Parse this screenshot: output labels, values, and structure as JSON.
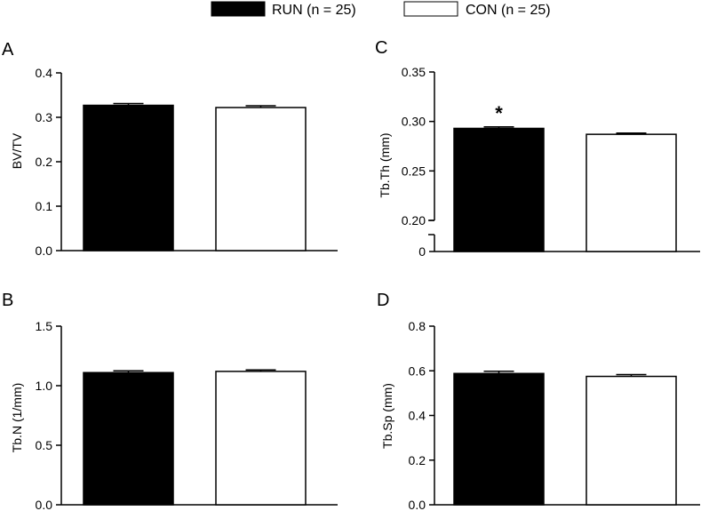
{
  "legend": {
    "items": [
      {
        "label": "RUN (n = 25)",
        "color": "#000000"
      },
      {
        "label": "CON (n = 25)",
        "color": "#ffffff"
      }
    ]
  },
  "chart_data": [
    {
      "panel": "A",
      "type": "bar",
      "categories": [
        "RUN",
        "CON"
      ],
      "values": [
        0.327,
        0.322
      ],
      "errors": [
        0.004,
        0.004
      ],
      "colors": [
        "#000000",
        "#ffffff"
      ],
      "ylabel": "BV/TV",
      "xlabel": "",
      "ylim": [
        0,
        0.4
      ],
      "yticks": [
        "0.0",
        "0.1",
        "0.2",
        "0.3",
        "0.4"
      ],
      "annotations": []
    },
    {
      "panel": "B",
      "type": "bar",
      "categories": [
        "RUN",
        "CON"
      ],
      "values": [
        1.11,
        1.12
      ],
      "errors": [
        0.015,
        0.012
      ],
      "colors": [
        "#000000",
        "#ffffff"
      ],
      "ylabel": "Tb.N (1/mm)",
      "xlabel": "",
      "ylim": [
        0,
        1.5
      ],
      "yticks": [
        "0.0",
        "0.5",
        "1.0",
        "1.5"
      ],
      "annotations": []
    },
    {
      "panel": "C",
      "type": "bar",
      "categories": [
        "RUN",
        "CON"
      ],
      "values": [
        0.293,
        0.287
      ],
      "errors": [
        0.0015,
        0.0012
      ],
      "colors": [
        "#000000",
        "#ffffff"
      ],
      "ylabel": "Tb.Th (mm)",
      "xlabel": "",
      "ylim": [
        0.2,
        0.35
      ],
      "axis_break": true,
      "yticks": [
        "0",
        "0.20",
        "0.25",
        "0.30",
        "0.35"
      ],
      "annotations": [
        {
          "category": "RUN",
          "text": "*"
        }
      ]
    },
    {
      "panel": "D",
      "type": "bar",
      "categories": [
        "RUN",
        "CON"
      ],
      "values": [
        0.588,
        0.575
      ],
      "errors": [
        0.01,
        0.008
      ],
      "colors": [
        "#000000",
        "#ffffff"
      ],
      "ylabel": "Tb.Sp (mm)",
      "xlabel": "",
      "ylim": [
        0,
        0.8
      ],
      "yticks": [
        "0.0",
        "0.2",
        "0.4",
        "0.6",
        "0.8"
      ],
      "annotations": []
    }
  ]
}
